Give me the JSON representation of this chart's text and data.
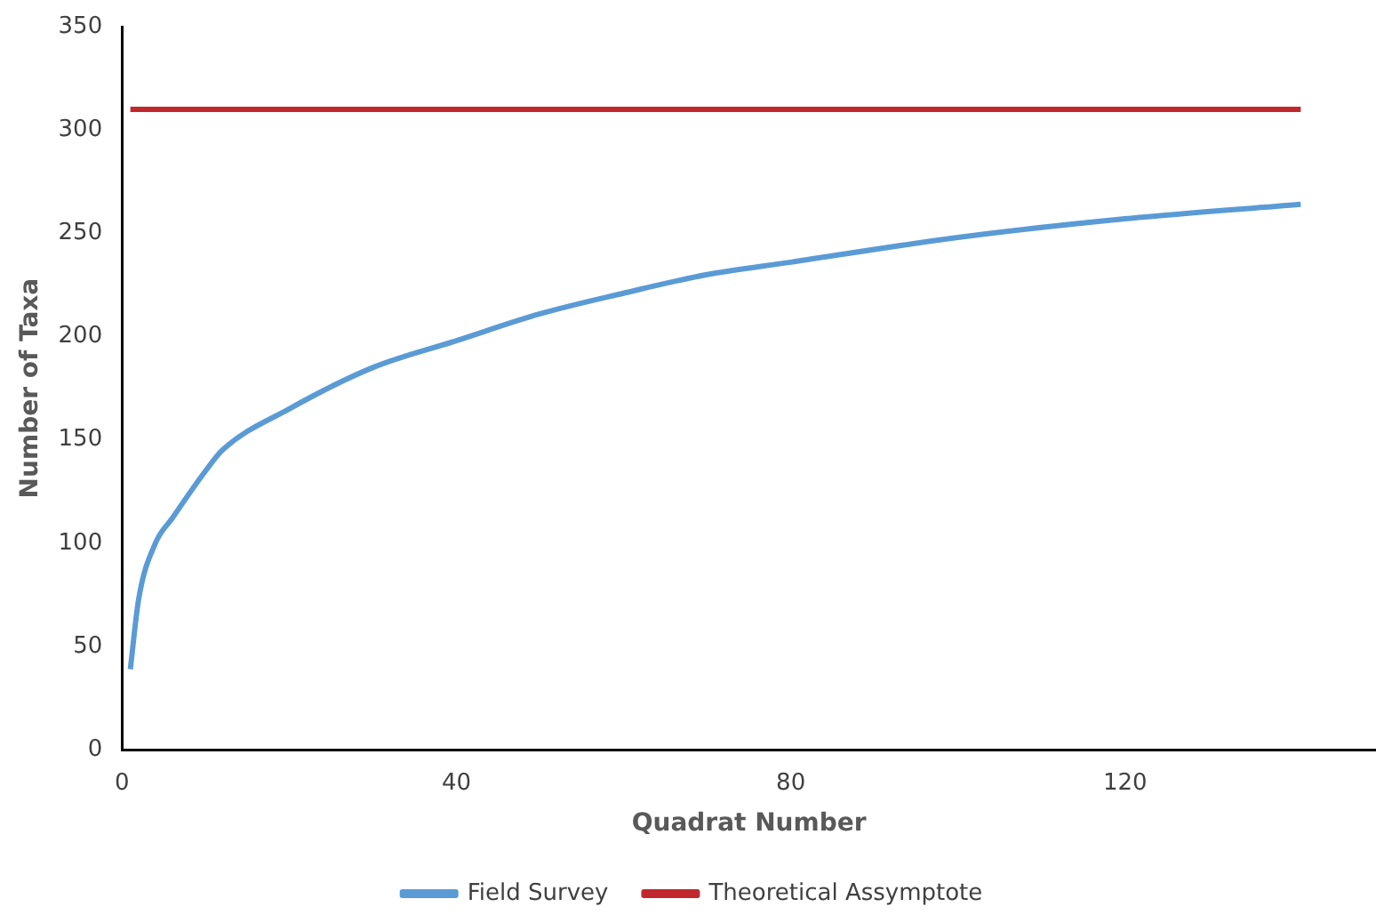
{
  "chart_data": {
    "type": "line",
    "xlabel": "Quadrat Number",
    "ylabel": "Number of Taxa",
    "xlim": [
      0,
      150
    ],
    "xticks": [
      0,
      40,
      80,
      120
    ],
    "ylim": [
      0,
      350
    ],
    "yticks": [
      0,
      50,
      100,
      150,
      200,
      250,
      300,
      350
    ],
    "grid": false,
    "legend": "bottom",
    "marker": "none",
    "line_style": "solid",
    "series": [
      {
        "name": "Field Survey",
        "color": "#5b9bd5",
        "x": [
          1,
          2,
          4,
          6,
          10,
          12,
          20,
          30,
          40,
          50,
          60,
          70,
          80,
          100,
          120,
          141
        ],
        "values": [
          39,
          73,
          100,
          112,
          135,
          145,
          165,
          185,
          198,
          211,
          221,
          230,
          236,
          248,
          257,
          264
        ]
      },
      {
        "name": "Theoretical Assymptote",
        "color": "#c0282d",
        "x": [
          1,
          141
        ],
        "values": [
          310,
          310
        ]
      }
    ]
  }
}
